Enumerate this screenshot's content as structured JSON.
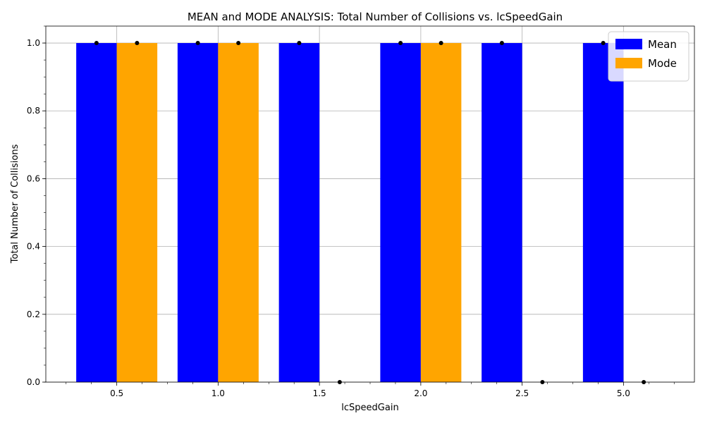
{
  "chart_data": {
    "type": "bar",
    "title": "MEAN and MODE ANALYSIS: Total Number of Collisions vs. lcSpeedGain",
    "xlabel": "lcSpeedGain",
    "ylabel": "Total Number of Collisions",
    "categories": [
      "0.5",
      "1.0",
      "1.5",
      "2.0",
      "2.5",
      "5.0"
    ],
    "series": [
      {
        "name": "Mean",
        "color": "#0000ff",
        "values": [
          1,
          1,
          1,
          1,
          1,
          1
        ]
      },
      {
        "name": "Mode",
        "color": "#ffa500",
        "values": [
          1,
          1,
          0,
          1,
          0,
          0
        ]
      }
    ],
    "ylim": [
      0,
      1.05
    ],
    "yticks": [
      "0.0",
      "0.2",
      "0.4",
      "0.6",
      "0.8",
      "1.0"
    ],
    "grid": true,
    "legend_position": "top-right",
    "markers": {
      "color": "#000000",
      "shape": "dot"
    }
  }
}
